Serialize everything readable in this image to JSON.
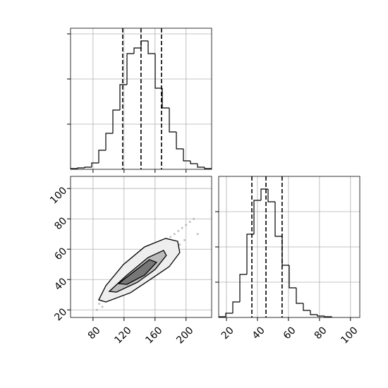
{
  "chart_data": [
    {
      "type": "histogram",
      "bins": [
        51,
        60.1,
        69.2,
        78.3,
        87.4,
        96.5,
        105.6,
        114.7,
        123.8,
        132.9,
        142,
        151.1,
        160.2,
        169.3,
        178.4,
        187.5,
        196.6,
        205.7,
        214.8,
        223.9,
        233
      ],
      "counts": [
        1,
        2,
        3,
        9,
        27,
        51,
        84,
        120,
        164,
        172,
        182,
        164,
        115,
        87,
        53,
        29,
        12,
        8,
        3,
        1
      ],
      "quantiles": [
        118.3,
        141.9,
        168.3
      ],
      "xlim": [
        51,
        233
      ],
      "ylim": [
        0,
        200
      ],
      "xticks": [
        80,
        120,
        160,
        200
      ],
      "yticks": [
        64,
        128,
        192
      ],
      "xtick_labels": false,
      "ytick_labels": false,
      "grid": true,
      "color": "#000000"
    },
    {
      "type": "scatter",
      "x": [
        88,
        92,
        95,
        98,
        100,
        103,
        105,
        108,
        110,
        112,
        115,
        117,
        120,
        122,
        125,
        127,
        130,
        132,
        135,
        137,
        140,
        142,
        145,
        147,
        150,
        152,
        155,
        157,
        160,
        162,
        165,
        167,
        170,
        172,
        175,
        177,
        180,
        182,
        185,
        187,
        190,
        192,
        195,
        198,
        200,
        205,
        210,
        215,
        85,
        90
      ],
      "y": [
        24,
        22,
        28,
        26,
        31,
        27,
        33,
        29,
        35,
        30,
        38,
        34,
        40,
        36,
        43,
        37,
        45,
        40,
        47,
        42,
        49,
        44,
        52,
        46,
        55,
        48,
        57,
        50,
        60,
        52,
        62,
        54,
        64,
        56,
        66,
        58,
        68,
        60,
        70,
        61,
        72,
        63,
        74,
        66,
        76,
        78,
        80,
        70,
        20,
        27
      ],
      "contours": [
        {
          "x": [
            87.4,
            96.5,
            119.2,
            146.5,
            173.7,
            189.2,
            191.9,
            178.3,
            155.5,
            128.3,
            96.5
          ],
          "y": [
            26.6,
            35.9,
            49.9,
            61.5,
            67.1,
            65.2,
            57.8,
            48.5,
            40.6,
            31.3,
            25.2
          ],
          "color": "#eeeeee"
        },
        {
          "x": [
            101,
            123.7,
            151,
            171,
            174.6,
            160.1,
            137.4,
            110.1
          ],
          "y": [
            32.2,
            42.9,
            54.5,
            59.2,
            55.9,
            46.6,
            38.2,
            31.7
          ],
          "color": "#bbbbbb"
        },
        {
          "x": [
            112.8,
            132.8,
            152.8,
            161.9,
            146.5,
            123.7
          ],
          "y": [
            37.3,
            45.2,
            53.1,
            51.3,
            42.9,
            36.8
          ],
          "color": "#777777"
        }
      ],
      "xlim": [
        51,
        233
      ],
      "ylim": [
        15,
        108
      ],
      "xticks": [
        80,
        120,
        160,
        200
      ],
      "yticks": [
        20,
        40,
        60,
        80,
        100
      ],
      "xtick_labels": true,
      "ytick_labels": true,
      "grid": true,
      "color": "#999999"
    },
    {
      "type": "histogram",
      "bins": [
        15,
        19.55,
        24.1,
        28.65,
        33.2,
        37.75,
        42.3,
        46.85,
        51.4,
        55.95,
        60.5,
        65.05,
        69.6,
        74.15,
        78.7,
        83.25,
        87.8
      ],
      "counts": [
        1,
        6,
        22,
        61,
        118,
        166,
        182,
        164,
        115,
        74,
        42,
        20,
        10,
        4,
        2,
        1
      ],
      "quantiles": [
        36.4,
        45.5,
        55.9
      ],
      "xlim": [
        15,
        106
      ],
      "ylim": [
        0,
        200
      ],
      "xticks": [
        20,
        40,
        60,
        80,
        100
      ],
      "yticks": [
        50,
        100,
        150
      ],
      "xtick_labels": true,
      "ytick_labels": false,
      "grid": true,
      "color": "#000000"
    }
  ]
}
